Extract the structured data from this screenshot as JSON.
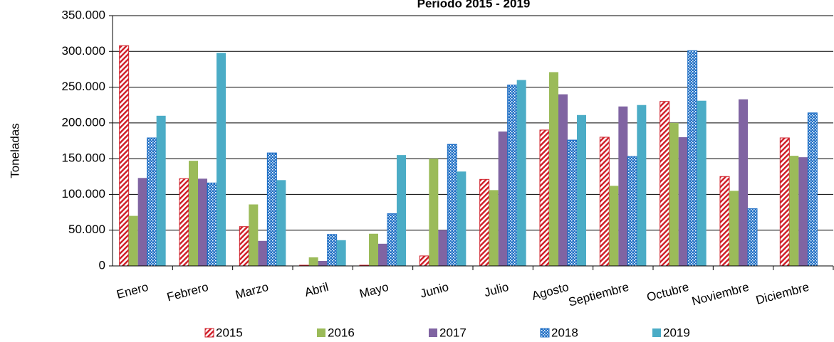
{
  "chart_data": {
    "type": "bar",
    "title": "Periodo  2015 - 2019",
    "y_label": "Toneladas",
    "categories": [
      "Enero",
      "Febrero",
      "Marzo",
      "Abril",
      "Mayo",
      "Junio",
      "Julio",
      "Agosto",
      "Septiembre",
      "Octubre",
      "Noviembre",
      "Diciembre"
    ],
    "series": [
      {
        "name": "2015",
        "color": "#d0202a",
        "pattern": "hatch",
        "values": [
          308000,
          122000,
          55000,
          1000,
          1000,
          14000,
          121000,
          190000,
          180000,
          230000,
          125000,
          179000
        ]
      },
      {
        "name": "2016",
        "color": "#9bbb59",
        "values": [
          70000,
          147000,
          86000,
          12000,
          45000,
          150000,
          106000,
          271000,
          112000,
          200000,
          105000,
          154000
        ]
      },
      {
        "name": "2017",
        "color": "#8064a2",
        "values": [
          123000,
          122000,
          35000,
          7000,
          31000,
          50000,
          188000,
          240000,
          223000,
          180000,
          233000,
          152000
        ]
      },
      {
        "name": "2018",
        "color": "#1f6fc5",
        "pattern": "checker",
        "values": [
          179000,
          116000,
          158000,
          44000,
          73000,
          170000,
          253000,
          176000,
          153000,
          301000,
          80000,
          214000
        ]
      },
      {
        "name": "2019",
        "color": "#4bacc6",
        "values": [
          210000,
          298000,
          120000,
          36000,
          155000,
          132000,
          260000,
          211000,
          225000,
          231000,
          null,
          null
        ]
      }
    ],
    "ylim": [
      0,
      350000
    ],
    "yticks": [
      0,
      {
        "value": 50000,
        "label": "50.000"
      },
      {
        "value": 100000,
        "label": "100.000"
      },
      {
        "value": 150000,
        "label": "150.000"
      },
      {
        "value": 200000,
        "label": "200.000"
      },
      {
        "value": 250000,
        "label": "250.000"
      },
      {
        "value": 300000,
        "label": "300.000"
      },
      {
        "value": 350000,
        "label": "350.000"
      }
    ],
    "grid": true,
    "legend": "bottom"
  }
}
